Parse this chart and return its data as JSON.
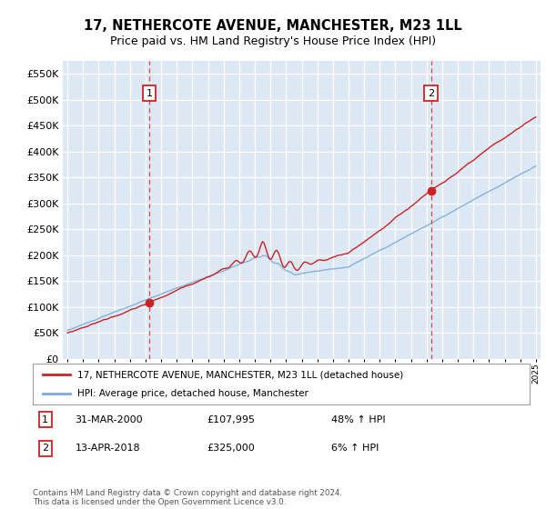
{
  "title": "17, NETHERCOTE AVENUE, MANCHESTER, M23 1LL",
  "subtitle": "Price paid vs. HM Land Registry's House Price Index (HPI)",
  "title_fontsize": 10.5,
  "subtitle_fontsize": 9,
  "bg_color": "#ffffff",
  "plot_bg_color": "#dde8f5",
  "grid_color": "#ffffff",
  "sale1_year": 2000.24,
  "sale1_price": 107995,
  "sale2_year": 2018.28,
  "sale2_price": 325000,
  "yticks": [
    0,
    50000,
    100000,
    150000,
    200000,
    250000,
    300000,
    350000,
    400000,
    450000,
    500000,
    550000
  ],
  "xmin": 1994.7,
  "xmax": 2025.3,
  "ymin": 0,
  "ymax": 575000,
  "red_color": "#cc2222",
  "blue_color": "#7aabdd",
  "annotation_box_color": "#cc2222",
  "dashed_line_color": "#dd4444",
  "legend_label_red": "17, NETHERCOTE AVENUE, MANCHESTER, M23 1LL (detached house)",
  "legend_label_blue": "HPI: Average price, detached house, Manchester",
  "note1_label": "1",
  "note1_date": "31-MAR-2000",
  "note1_price": "£107,995",
  "note1_pct": "48% ↑ HPI",
  "note2_label": "2",
  "note2_date": "13-APR-2018",
  "note2_price": "£325,000",
  "note2_pct": "6% ↑ HPI",
  "footer": "Contains HM Land Registry data © Crown copyright and database right 2024.\nThis data is licensed under the Open Government Licence v3.0."
}
